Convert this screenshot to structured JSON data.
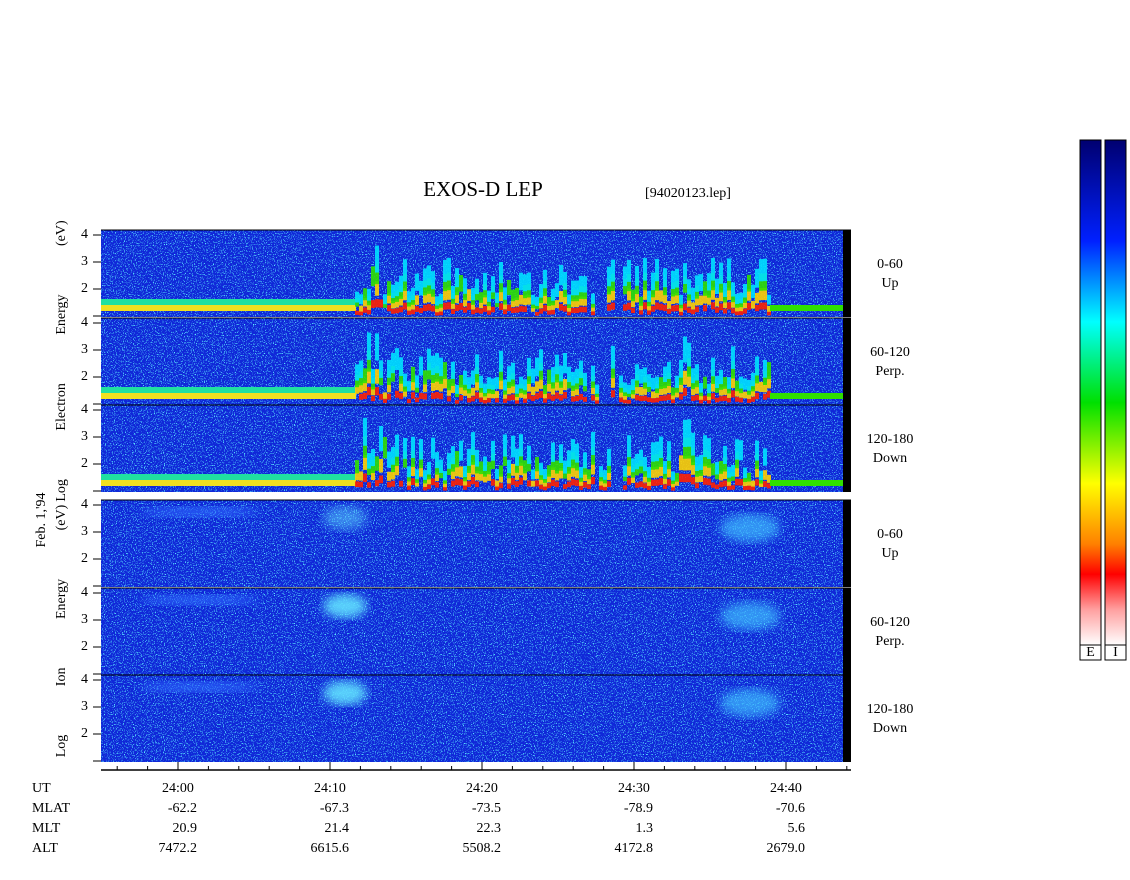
{
  "header": {
    "title": "EXOS-D LEP",
    "file": "[94020123.lep]"
  },
  "date": "Feb. 1,'94",
  "groups": [
    {
      "y_label": "Log Electron Energy (eV)",
      "panels": [
        {
          "range": "0-60",
          "direction": "Up",
          "yticks": [
            4,
            3,
            2
          ]
        },
        {
          "range": "60-120",
          "direction": "Perp.",
          "yticks": [
            4,
            3,
            2
          ]
        },
        {
          "range": "120-180",
          "direction": "Down",
          "yticks": [
            4,
            3,
            2
          ]
        }
      ]
    },
    {
      "y_label": "Log Ion Energy (eV)",
      "panels": [
        {
          "range": "0-60",
          "direction": "Up",
          "yticks": [
            4,
            3,
            2
          ]
        },
        {
          "range": "60-120",
          "direction": "Perp.",
          "yticks": [
            4,
            3,
            2
          ]
        },
        {
          "range": "120-180",
          "direction": "Down",
          "yticks": [
            4,
            3,
            2
          ]
        }
      ]
    }
  ],
  "time_axis": {
    "name": "UT",
    "labels": [
      "24:00",
      "24:10",
      "24:20",
      "24:30",
      "24:40"
    ]
  },
  "rows": [
    {
      "name": "MLAT",
      "values": [
        "-62.2",
        "-67.3",
        "-73.5",
        "-78.9",
        "-70.6"
      ]
    },
    {
      "name": "MLT",
      "values": [
        "20.9",
        "21.4",
        "22.3",
        "1.3",
        "5.6"
      ]
    },
    {
      "name": "ALT",
      "values": [
        "7472.2",
        "6615.6",
        "5508.2",
        "4172.8",
        "2679.0"
      ]
    }
  ],
  "color_bars": [
    "E",
    "I"
  ]
}
